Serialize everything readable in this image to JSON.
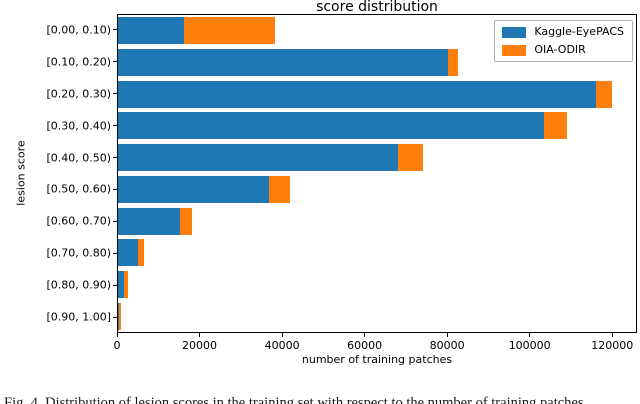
{
  "figure": {
    "caption_fragment": "Fig. 4. Distribution of lesion scores in the training set with respect to the number of training patches."
  },
  "chart_data": {
    "type": "bar",
    "orientation": "horizontal",
    "stacked": true,
    "title": "score distribution",
    "xlabel": "number of training patches",
    "ylabel": "lesion score",
    "categories": [
      "[0.00, 0.10)",
      "[0.10, 0.20)",
      "[0.20, 0.30)",
      "[0.30, 0.40)",
      "[0.40, 0.50)",
      "[0.50, 0.60)",
      "[0.60, 0.70)",
      "[0.70, 0.80)",
      "[0.80, 0.90)",
      "[0.90, 1.00]"
    ],
    "series": [
      {
        "name": "Kaggle-EyePACS",
        "color": "#1f77b4",
        "values": [
          16000,
          80300,
          116300,
          103700,
          68000,
          36700,
          15200,
          4800,
          1500,
          300
        ]
      },
      {
        "name": "OIA-ODIR",
        "color": "#ff7f0e",
        "values": [
          22200,
          2400,
          3900,
          5600,
          6300,
          5100,
          2900,
          1600,
          1000,
          500
        ]
      }
    ],
    "xlim": [
      0,
      126000
    ],
    "xticks": [
      0,
      20000,
      40000,
      60000,
      80000,
      100000,
      120000
    ],
    "legend_position": "upper right",
    "grid": false,
    "axis_color": "#000000",
    "background_color": "#ffffff"
  }
}
